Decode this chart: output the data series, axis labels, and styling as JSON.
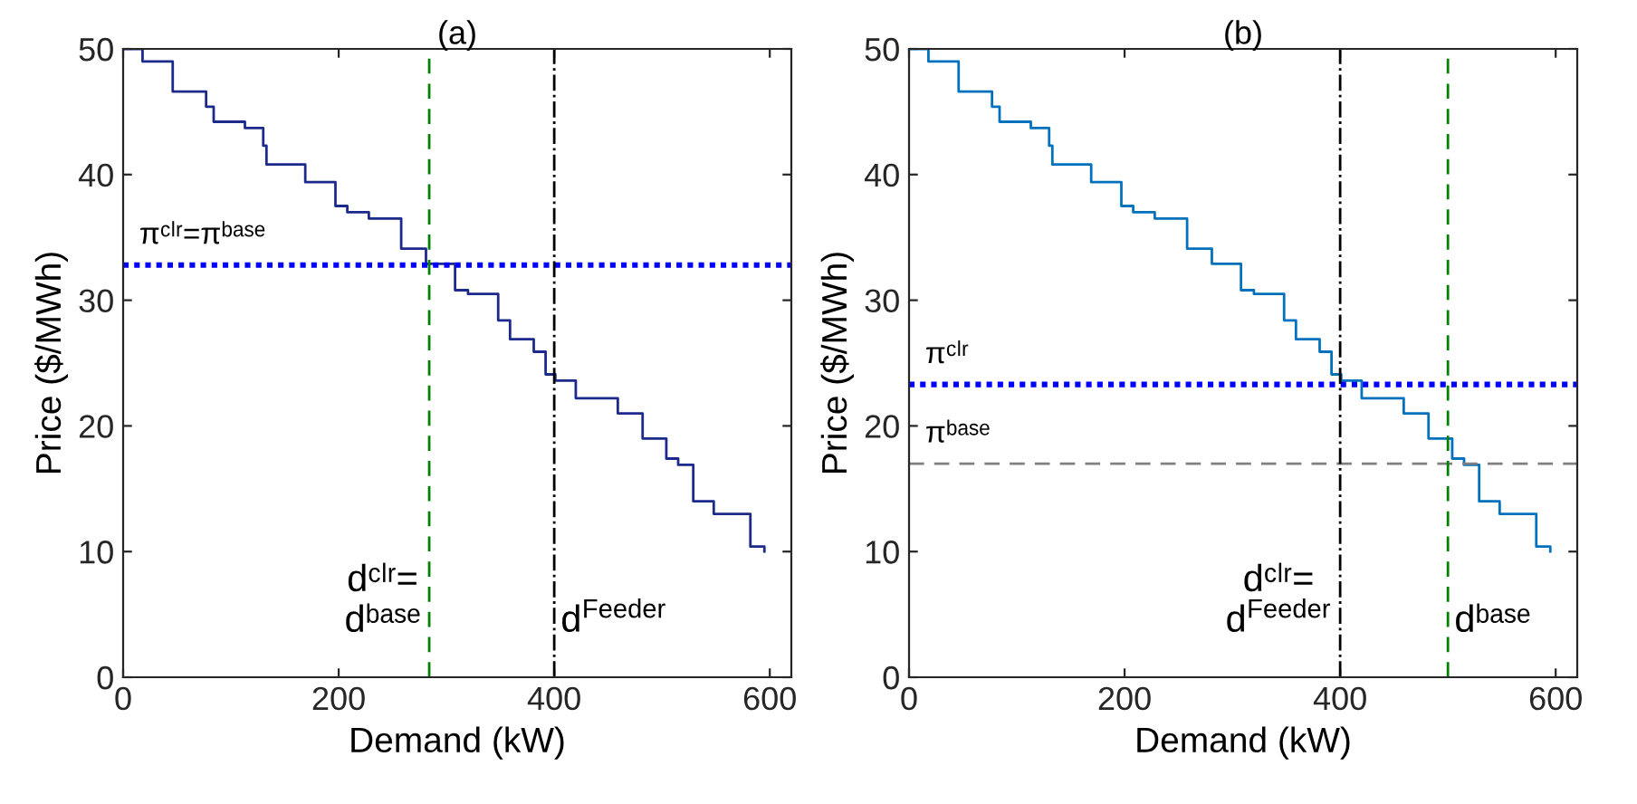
{
  "chart_data": [
    {
      "type": "step",
      "title": "(a)",
      "xlabel": "Demand (kW)",
      "ylabel": "Price ($/MWh)",
      "xlim": [
        0,
        620
      ],
      "ylim": [
        0,
        50
      ],
      "xticks": [
        0,
        200,
        400,
        600
      ],
      "yticks": [
        0,
        10,
        20,
        30,
        40,
        50
      ],
      "grid": false,
      "series": [
        {
          "color": "#1c2a8c",
          "x": [
            0,
            18,
            46,
            77,
            84,
            113,
            130,
            133,
            169,
            197,
            208,
            228,
            258,
            281,
            308,
            320,
            348,
            359,
            381,
            392,
            401,
            420,
            459,
            482,
            504,
            515,
            529,
            548,
            582,
            595
          ],
          "values": [
            50,
            49,
            46.6,
            45.4,
            44.2,
            43.7,
            42.3,
            40.8,
            39.4,
            37.5,
            37,
            36.5,
            34.1,
            32.9,
            30.8,
            30.5,
            28.4,
            26.9,
            25.9,
            24.1,
            23.6,
            22.2,
            21,
            19,
            17.4,
            16.9,
            14,
            13,
            10.4,
            10
          ]
        }
      ],
      "ref_lines": [
        {
          "axis": "y",
          "value": 32.8,
          "label": "πᶜˡʳ=πᵇᵃˢᵉ",
          "color": "#0000ff",
          "line_style": "dotted"
        },
        {
          "axis": "x",
          "value": 284,
          "label": "dᶜˡʳ=\ndᵇᵃˢᵉ",
          "color": "#008000",
          "line_style": "dashed"
        },
        {
          "axis": "x",
          "value": 400,
          "label": "d$^{Feeder}$",
          "color": "#000000",
          "line_style": "dashdot"
        }
      ]
    },
    {
      "type": "step",
      "title": "(b)",
      "xlabel": "Demand (kW)",
      "ylabel": "Price ($/MWh)",
      "xlim": [
        0,
        620
      ],
      "ylim": [
        0,
        50
      ],
      "xticks": [
        0,
        200,
        400,
        600
      ],
      "yticks": [
        0,
        10,
        20,
        30,
        40,
        50
      ],
      "grid": false,
      "series": [
        {
          "color": "#0072bd",
          "x": [
            0,
            18,
            46,
            77,
            84,
            113,
            130,
            133,
            169,
            197,
            208,
            228,
            258,
            281,
            308,
            320,
            348,
            359,
            381,
            392,
            401,
            420,
            459,
            482,
            504,
            515,
            529,
            548,
            582,
            595
          ],
          "values": [
            50,
            49,
            46.6,
            45.4,
            44.2,
            43.7,
            42.3,
            40.8,
            39.4,
            37.5,
            37,
            36.5,
            34.1,
            32.9,
            30.8,
            30.5,
            28.4,
            26.9,
            25.9,
            24.1,
            23.6,
            22.2,
            21,
            19,
            17.4,
            16.9,
            14,
            13,
            10.4,
            10
          ]
        }
      ],
      "ref_lines": [
        {
          "axis": "y",
          "value": 23.3,
          "label": "πᶜˡʳ",
          "color": "#0000ff",
          "line_style": "dotted"
        },
        {
          "axis": "y",
          "value": 17,
          "label": "πᵇᵃˢᵉ",
          "color": "#808080",
          "line_style": "dashed"
        },
        {
          "axis": "x",
          "value": 400,
          "label": "dᶜˡʳ=\nd$^{Feeder}$",
          "color": "#000000",
          "line_style": "dashdot"
        },
        {
          "axis": "x",
          "value": 500,
          "label": "dᵇᵃˢᵉ",
          "color": "#008000",
          "line_style": "dashed"
        }
      ]
    }
  ]
}
